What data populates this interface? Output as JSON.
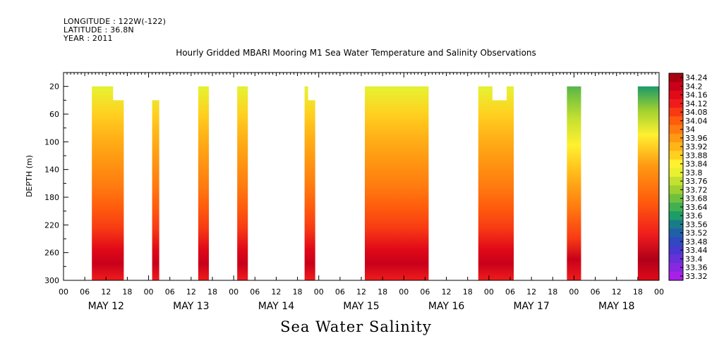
{
  "header": {
    "longitude": "LONGITUDE : 122W(-122)",
    "latitude": "LATITUDE : 36.8N",
    "year": "YEAR : 2011"
  },
  "chart_data": {
    "type": "heatmap",
    "title": "Hourly Gridded MBARI Mooring M1 Sea Water Temperature and Salinity Observations",
    "bottom_title": "Sea Water Salinity",
    "ylabel": "DEPTH (m)",
    "y_axis": {
      "ylim": [
        300,
        0
      ],
      "inverted": true,
      "ticks": [
        20,
        60,
        100,
        140,
        180,
        220,
        260,
        300
      ],
      "tick_labels": [
        "20",
        "60",
        "100",
        "140",
        "180",
        "220",
        "260",
        "300"
      ]
    },
    "x_axis": {
      "start": "2011-05-12 00:00",
      "end": "2011-05-19 00:00",
      "hour_labels": [
        "00",
        "06",
        "12",
        "18",
        "00",
        "06",
        "12",
        "18",
        "00",
        "06",
        "12",
        "18",
        "00",
        "06",
        "12",
        "18",
        "00",
        "06",
        "12",
        "18",
        "00",
        "06",
        "12",
        "18",
        "00",
        "06",
        "12",
        "18",
        "00"
      ],
      "day_labels": [
        "MAY 12",
        "MAY 13",
        "MAY 14",
        "MAY 15",
        "MAY 16",
        "MAY 17",
        "MAY 18"
      ]
    },
    "colorbar": {
      "labels": [
        "34.24",
        "34.2",
        "34.16",
        "34.12",
        "34.08",
        "34.04",
        "34",
        "33.96",
        "33.92",
        "33.88",
        "33.84",
        "33.8",
        "33.76",
        "33.72",
        "33.68",
        "33.64",
        "33.6",
        "33.56",
        "33.52",
        "33.48",
        "33.44",
        "33.4",
        "33.36",
        "33.32"
      ],
      "colors": [
        "#a80010",
        "#c8001a",
        "#e00a18",
        "#f01c1c",
        "#f83a14",
        "#ff5c0c",
        "#ff7a10",
        "#ff9812",
        "#ffb418",
        "#ffd020",
        "#fff030",
        "#e8f030",
        "#c4e030",
        "#9ed030",
        "#70c040",
        "#40b050",
        "#1e9c68",
        "#187c88",
        "#2060a8",
        "#3048c0",
        "#4838d0",
        "#6830d8",
        "#8828e0",
        "#a820e8"
      ]
    },
    "segments": [
      {
        "start": "2011-05-12 08:00",
        "end": "2011-05-12 17:00",
        "top_depth": 20,
        "notch": {
          "start": "2011-05-12 14:00",
          "end": "2011-05-12 17:00",
          "top_depth": 40
        }
      },
      {
        "start": "2011-05-13 01:00",
        "end": "2011-05-13 03:00",
        "top_depth": 40
      },
      {
        "start": "2011-05-13 14:00",
        "end": "2011-05-13 17:00",
        "top_depth": 20
      },
      {
        "start": "2011-05-14 01:00",
        "end": "2011-05-14 04:00",
        "top_depth": 20
      },
      {
        "start": "2011-05-14 20:00",
        "end": "2011-05-14 23:00",
        "top_depth": 20,
        "notch": {
          "start": "2011-05-14 21:00",
          "end": "2011-05-14 23:00",
          "top_depth": 40
        }
      },
      {
        "start": "2011-05-15 13:00",
        "end": "2011-05-16 07:00",
        "top_depth": 20
      },
      {
        "start": "2011-05-16 21:00",
        "end": "2011-05-17 07:00",
        "top_depth": 20,
        "notch": {
          "start": "2011-05-17 01:00",
          "end": "2011-05-17 05:00",
          "top_depth": 40
        }
      },
      {
        "start": "2011-05-17 22:00",
        "end": "2011-05-18 02:00",
        "top_depth": 20
      },
      {
        "start": "2011-05-18 18:00",
        "end": "2011-05-19 00:00",
        "top_depth": 20
      }
    ]
  }
}
